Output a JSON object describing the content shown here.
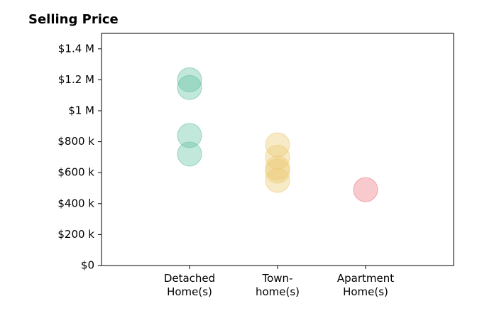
{
  "chart_data": {
    "type": "strip",
    "title": "Selling Price",
    "categories": [
      "Detached\nHome(s)",
      "Town-\nhome(s)",
      "Apartment\nHome(s)"
    ],
    "values": [
      [
        1200000,
        1150000,
        840000,
        720000
      ],
      [
        780000,
        700000,
        630000,
        610000,
        550000
      ],
      [
        490000
      ]
    ],
    "colors": [
      "#66c2a5",
      "#eccb73",
      "#ee7b85"
    ],
    "opacity": 0.4,
    "ylim": [
      0,
      1500000
    ],
    "yticks": [
      {
        "value": 0,
        "label": "$0"
      },
      {
        "value": 200000,
        "label": "$200 k"
      },
      {
        "value": 400000,
        "label": "$400 k"
      },
      {
        "value": 600000,
        "label": "$600 k"
      },
      {
        "value": 800000,
        "label": "$800 k"
      },
      {
        "value": 1000000,
        "label": "$1 M"
      },
      {
        "value": 1200000,
        "label": "$1.2 M"
      },
      {
        "value": 1400000,
        "label": "$1.4 M"
      }
    ],
    "grid": false
  }
}
